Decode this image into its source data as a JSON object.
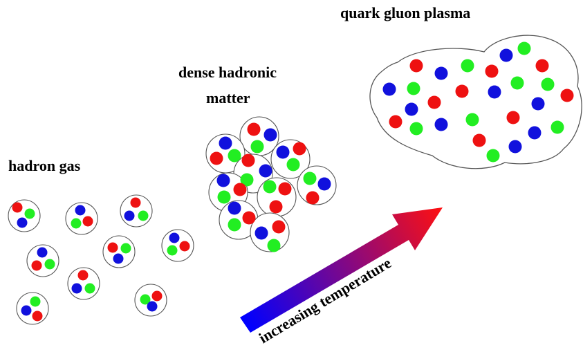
{
  "labels": {
    "hadron_gas": "hadron gas",
    "dense_line1": "dense hadronic",
    "dense_line2": "matter",
    "qgp": "quark gluon plasma",
    "arrow": "increasing temperature"
  },
  "colors": {
    "red": "#ee1111",
    "green": "#22ee22",
    "blue": "#1111dd",
    "outline": "#555555",
    "arrow_start": "#0000ff",
    "arrow_end": "#ff1010"
  }
}
